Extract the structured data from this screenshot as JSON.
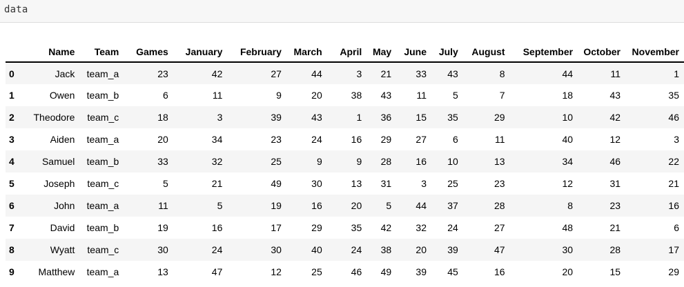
{
  "input_cell": {
    "code": "data"
  },
  "table": {
    "columns": [
      "Name",
      "Team",
      "Games",
      "January",
      "February",
      "March",
      "April",
      "May",
      "June",
      "July",
      "August",
      "September",
      "October",
      "November"
    ],
    "rows": [
      {
        "index": "0",
        "cells": [
          "Jack",
          "team_a",
          "23",
          "42",
          "27",
          "44",
          "3",
          "21",
          "33",
          "43",
          "8",
          "44",
          "11",
          "1"
        ]
      },
      {
        "index": "1",
        "cells": [
          "Owen",
          "team_b",
          "6",
          "11",
          "9",
          "20",
          "38",
          "43",
          "11",
          "5",
          "7",
          "18",
          "43",
          "35"
        ]
      },
      {
        "index": "2",
        "cells": [
          "Theodore",
          "team_c",
          "18",
          "3",
          "39",
          "43",
          "1",
          "36",
          "15",
          "35",
          "29",
          "10",
          "42",
          "46"
        ]
      },
      {
        "index": "3",
        "cells": [
          "Aiden",
          "team_a",
          "20",
          "34",
          "23",
          "24",
          "16",
          "29",
          "27",
          "6",
          "11",
          "40",
          "12",
          "3"
        ]
      },
      {
        "index": "4",
        "cells": [
          "Samuel",
          "team_b",
          "33",
          "32",
          "25",
          "9",
          "9",
          "28",
          "16",
          "10",
          "13",
          "34",
          "46",
          "22"
        ]
      },
      {
        "index": "5",
        "cells": [
          "Joseph",
          "team_c",
          "5",
          "21",
          "49",
          "30",
          "13",
          "31",
          "3",
          "25",
          "23",
          "12",
          "31",
          "21"
        ]
      },
      {
        "index": "6",
        "cells": [
          "John",
          "team_a",
          "11",
          "5",
          "19",
          "16",
          "20",
          "5",
          "44",
          "37",
          "28",
          "8",
          "23",
          "16"
        ]
      },
      {
        "index": "7",
        "cells": [
          "David",
          "team_b",
          "19",
          "16",
          "17",
          "29",
          "35",
          "42",
          "32",
          "24",
          "27",
          "48",
          "21",
          "6"
        ]
      },
      {
        "index": "8",
        "cells": [
          "Wyatt",
          "team_c",
          "30",
          "24",
          "30",
          "40",
          "24",
          "38",
          "20",
          "39",
          "47",
          "30",
          "28",
          "17"
        ]
      },
      {
        "index": "9",
        "cells": [
          "Matthew",
          "team_a",
          "13",
          "47",
          "12",
          "25",
          "46",
          "49",
          "39",
          "45",
          "16",
          "20",
          "15",
          "29"
        ]
      }
    ]
  }
}
